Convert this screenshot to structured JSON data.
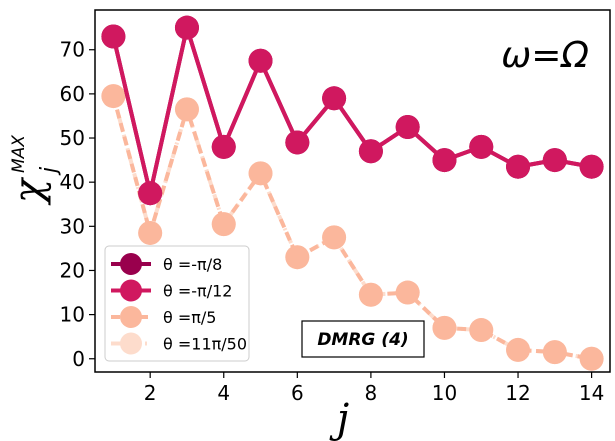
{
  "chart_data": {
    "type": "line",
    "xlabel": "j",
    "ylabel": "χ",
    "ylabel_sub": "j",
    "ylabel_sup": "MAX",
    "xlim": [
      0.5,
      14.5
    ],
    "ylim": [
      -3,
      79
    ],
    "xticks": [
      2,
      4,
      6,
      8,
      10,
      12,
      14
    ],
    "yticks": [
      0,
      10,
      20,
      30,
      40,
      50,
      60,
      70
    ],
    "x": [
      1,
      2,
      3,
      4,
      5,
      6,
      7,
      8,
      9,
      10,
      11,
      12,
      13,
      14
    ],
    "annotation": "ω=Ω",
    "method_label": "DMRG (4)",
    "legend_position": "lower-left",
    "series": [
      {
        "name": "θ =-π/8",
        "color": "#99004d",
        "linestyle": "solid",
        "values": [
          73,
          37.5,
          75,
          48,
          67.5,
          49,
          59,
          47,
          52.5,
          45,
          48,
          43.5,
          45,
          43.5
        ]
      },
      {
        "name": "θ =-π/12",
        "color": "#d0185f",
        "linestyle": "solid",
        "values": [
          73,
          37.5,
          75,
          48,
          67.5,
          49,
          59,
          47,
          52.5,
          45,
          48,
          43.5,
          45,
          43.5
        ]
      },
      {
        "name": "θ =π/5",
        "color": "#fbb79c",
        "linestyle": "dashed",
        "values": [
          59.5,
          28.5,
          56.5,
          30.5,
          42,
          23,
          27.5,
          14.5,
          15,
          7,
          6.5,
          2,
          1.5,
          0
        ]
      },
      {
        "name": "θ =11π/50",
        "color": "#fddccc",
        "linestyle": "dashdot",
        "values": [
          59.5,
          28.5,
          56.5,
          30.5,
          42,
          23,
          27.5,
          14.5,
          15,
          7,
          6.5,
          2,
          1.5,
          0
        ]
      }
    ]
  }
}
